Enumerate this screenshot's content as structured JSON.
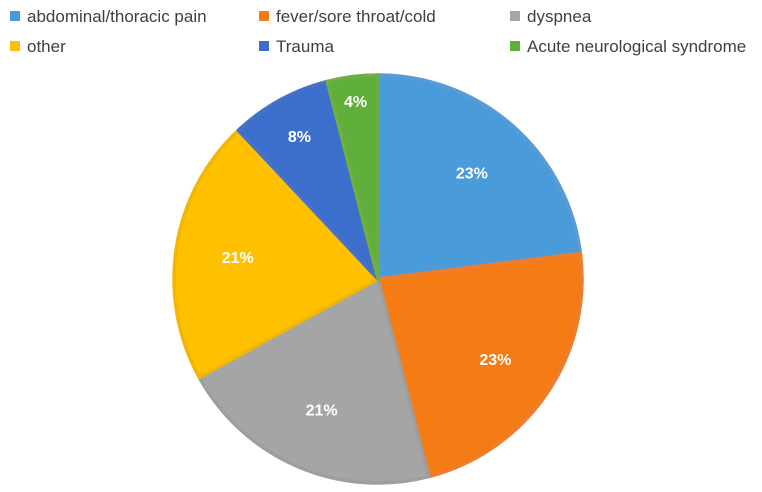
{
  "chart_data": {
    "type": "pie",
    "legend_position": "top",
    "slices": [
      {
        "name": "abdominal/thoracic pain",
        "value": 23,
        "label": "23%",
        "color": "#4A9BDA",
        "edge": "#5B9BD5"
      },
      {
        "name": "fever/sore throat/cold",
        "value": 23,
        "label": "23%",
        "color": "#F57B14",
        "edge": "#ED7D31"
      },
      {
        "name": "dyspnea",
        "value": 21,
        "label": "21%",
        "color": "#A5A5A5",
        "edge": "#9E9E9E"
      },
      {
        "name": "other",
        "value": 21,
        "label": "21%",
        "color": "#FFC000",
        "edge": "#F2B705"
      },
      {
        "name": "Trauma",
        "value": 8,
        "label": "8%",
        "color": "#3C6FCC",
        "edge": "#4472C4"
      },
      {
        "name": "Acute neurological syndrome",
        "value": 4,
        "label": "4%",
        "color": "#5FAF3A",
        "edge": "#70AD47"
      }
    ]
  }
}
